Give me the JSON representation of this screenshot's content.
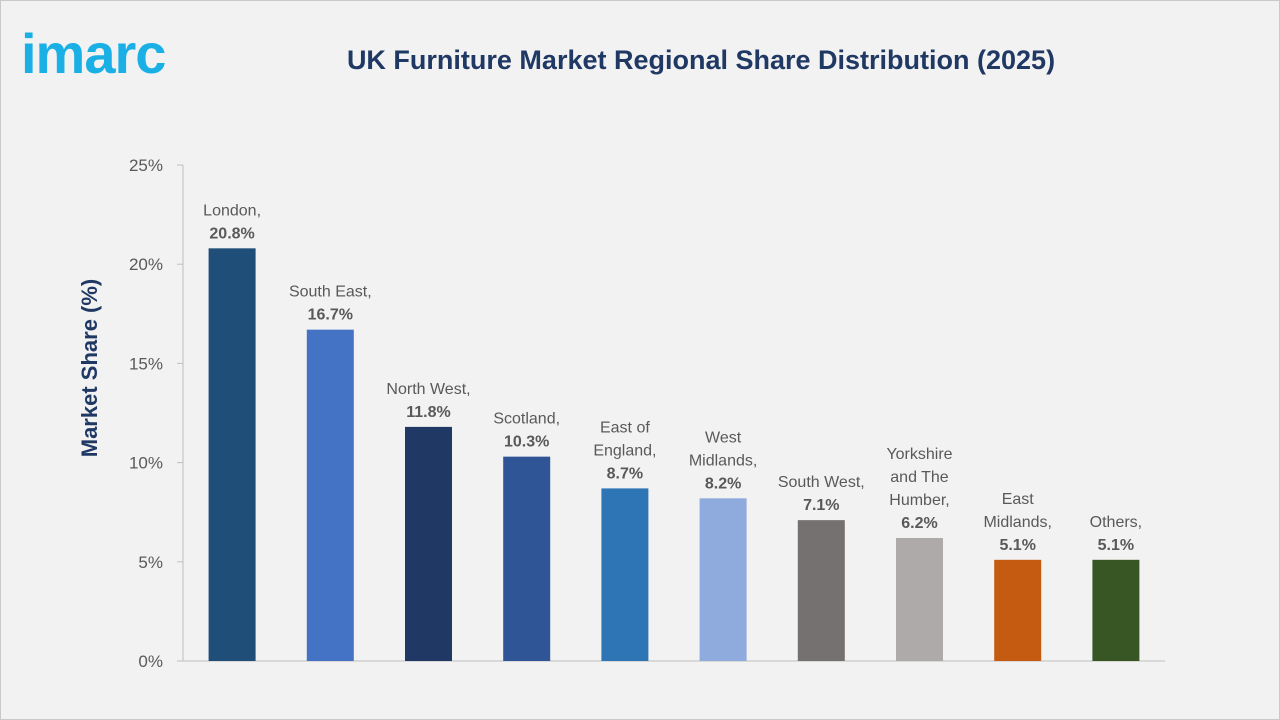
{
  "logo": {
    "text": "imarc",
    "color": "#1ab0e6"
  },
  "title": "UK Furniture Market Regional Share Distribution (2025)",
  "chart_data": {
    "type": "bar",
    "title": "UK Furniture Market Regional Share Distribution (2025)",
    "xlabel": "",
    "ylabel": "Market Share (%)",
    "ylim": [
      0,
      25
    ],
    "yticks": [
      0,
      5,
      10,
      15,
      20,
      25
    ],
    "ytick_labels": [
      "0%",
      "5%",
      "10%",
      "15%",
      "20%",
      "25%"
    ],
    "grid": false,
    "legend": "none",
    "categories": [
      "London",
      "South East",
      "North West",
      "Scotland",
      "East of England",
      "West Midlands",
      "South West",
      "Yorkshire and The Humber",
      "East Midlands",
      "Others"
    ],
    "values": [
      20.8,
      16.7,
      11.8,
      10.3,
      8.7,
      8.2,
      7.1,
      6.2,
      5.1,
      5.1
    ],
    "data_labels": [
      [
        "London,",
        "20.8%"
      ],
      [
        "South East,",
        "16.7%"
      ],
      [
        "North West,",
        "11.8%"
      ],
      [
        "Scotland,",
        "10.3%"
      ],
      [
        "East of",
        "England,",
        "8.7%"
      ],
      [
        "West",
        "Midlands,",
        "8.2%"
      ],
      [
        "South West,",
        "7.1%"
      ],
      [
        "Yorkshire",
        "and The",
        "Humber,",
        "6.2%"
      ],
      [
        "East",
        "Midlands,",
        "5.1%"
      ],
      [
        "Others,",
        "5.1%"
      ]
    ],
    "colors": [
      "#1f4e79",
      "#4472c4",
      "#203864",
      "#2f5597",
      "#2e75b6",
      "#8faadc",
      "#767171",
      "#aeaaaa",
      "#c55a11",
      "#375623"
    ],
    "text_color": "#595959",
    "ylabel_color": "#1f3864"
  }
}
